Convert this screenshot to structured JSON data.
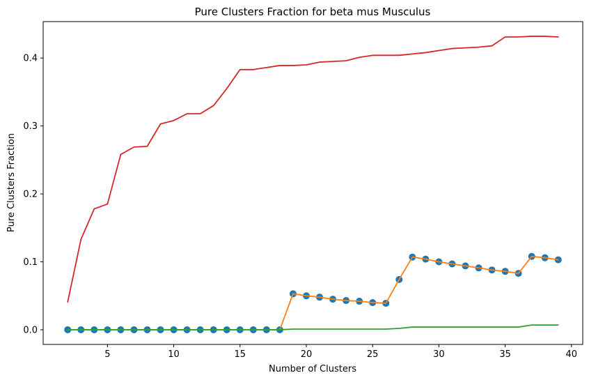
{
  "chart_data": {
    "type": "line",
    "title": "Pure Clusters Fraction for beta mus Musculus",
    "xlabel": "Number of Clusters",
    "ylabel": "Pure Clusters Fraction",
    "xlim": [
      0.15,
      40.85
    ],
    "ylim": [
      -0.0216,
      0.4536
    ],
    "grid": false,
    "x_ticks": [
      5,
      10,
      15,
      20,
      25,
      30,
      35,
      40
    ],
    "y_ticks": [
      0.0,
      0.1,
      0.2,
      0.3,
      0.4
    ],
    "x_tick_labels": [
      "5",
      "10",
      "15",
      "20",
      "25",
      "30",
      "35",
      "40"
    ],
    "y_tick_labels": [
      "0.0",
      "0.1",
      "0.2",
      "0.3",
      "0.4"
    ],
    "x": [
      2,
      3,
      4,
      5,
      6,
      7,
      8,
      9,
      10,
      11,
      12,
      13,
      14,
      15,
      16,
      17,
      18,
      19,
      20,
      21,
      22,
      23,
      24,
      25,
      26,
      27,
      28,
      29,
      30,
      31,
      32,
      33,
      34,
      35,
      36,
      37,
      38,
      39
    ],
    "series": [
      {
        "style": "scatter",
        "color": "#1f77b4",
        "values": [
          0,
          0,
          0,
          0,
          0,
          0,
          0,
          0,
          0,
          0,
          0,
          0,
          0,
          0,
          0,
          0,
          0,
          0.053,
          0.05,
          0.048,
          0.045,
          0.043,
          0.042,
          0.04,
          0.039,
          0.074,
          0.107,
          0.104,
          0.1,
          0.097,
          0.094,
          0.091,
          0.088,
          0.086,
          0.083,
          0.108,
          0.106,
          0.103
        ]
      },
      {
        "style": "line",
        "color": "#ff7f0e",
        "values": [
          0,
          0,
          0,
          0,
          0,
          0,
          0,
          0,
          0,
          0,
          0,
          0,
          0,
          0,
          0,
          0,
          0,
          0.053,
          0.05,
          0.048,
          0.045,
          0.043,
          0.042,
          0.04,
          0.039,
          0.074,
          0.107,
          0.104,
          0.1,
          0.097,
          0.094,
          0.091,
          0.088,
          0.086,
          0.083,
          0.108,
          0.106,
          0.103
        ]
      },
      {
        "style": "line",
        "color": "#2ca02c",
        "values": [
          0,
          0,
          0,
          0,
          0,
          0,
          0,
          0,
          0,
          0,
          0,
          0,
          0,
          0,
          0,
          0,
          0,
          0.001,
          0.001,
          0.001,
          0.001,
          0.001,
          0.001,
          0.001,
          0.001,
          0.002,
          0.004,
          0.004,
          0.004,
          0.004,
          0.004,
          0.004,
          0.004,
          0.004,
          0.004,
          0.007,
          0.007,
          0.007
        ]
      },
      {
        "style": "line",
        "color": "#d62728",
        "values": [
          0.041,
          0.133,
          0.178,
          0.185,
          0.258,
          0.269,
          0.27,
          0.303,
          0.308,
          0.318,
          0.318,
          0.33,
          0.355,
          0.383,
          0.383,
          0.386,
          0.389,
          0.389,
          0.39,
          0.394,
          0.395,
          0.396,
          0.401,
          0.404,
          0.404,
          0.404,
          0.406,
          0.408,
          0.411,
          0.414,
          0.415,
          0.416,
          0.418,
          0.431,
          0.431,
          0.432,
          0.432,
          0.431
        ]
      }
    ]
  }
}
